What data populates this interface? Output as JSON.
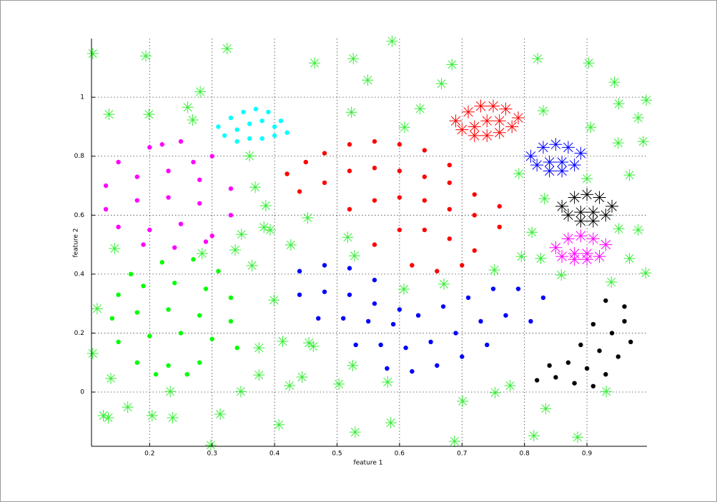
{
  "chart_data": {
    "type": "scatter",
    "xlabel": "feature 1",
    "ylabel": "feature 2",
    "xlim": [
      0.107,
      0.996
    ],
    "ylim": [
      -0.184,
      1.199
    ],
    "xticks": [
      0.2,
      0.3,
      0.4,
      0.5,
      0.6,
      0.7,
      0.8,
      0.9
    ],
    "yticks": [
      0,
      0.2,
      0.4,
      0.6,
      0.8,
      1
    ],
    "grid": true,
    "series": [
      {
        "color": "#ff00ff",
        "marker": "dot",
        "x": [
          0.15,
          0.2,
          0.25,
          0.3,
          0.13,
          0.18,
          0.23,
          0.28,
          0.33,
          0.13,
          0.18,
          0.23,
          0.28,
          0.33,
          0.15,
          0.2,
          0.25,
          0.3,
          0.19,
          0.24,
          0.29,
          0.22,
          0.27
        ],
        "y": [
          0.78,
          0.83,
          0.85,
          0.8,
          0.7,
          0.73,
          0.75,
          0.72,
          0.69,
          0.62,
          0.65,
          0.66,
          0.64,
          0.6,
          0.56,
          0.55,
          0.57,
          0.53,
          0.5,
          0.49,
          0.51,
          0.84,
          0.78
        ]
      },
      {
        "color": "#00ffff",
        "marker": "dot",
        "x": [
          0.31,
          0.33,
          0.35,
          0.37,
          0.39,
          0.41,
          0.32,
          0.34,
          0.36,
          0.38,
          0.4,
          0.42,
          0.34,
          0.36,
          0.38,
          0.4
        ],
        "y": [
          0.9,
          0.93,
          0.95,
          0.96,
          0.95,
          0.92,
          0.87,
          0.89,
          0.91,
          0.92,
          0.9,
          0.88,
          0.85,
          0.86,
          0.86,
          0.87
        ]
      },
      {
        "color": "#00ff00",
        "marker": "dot",
        "x": [
          0.17,
          0.22,
          0.27,
          0.31,
          0.15,
          0.19,
          0.24,
          0.29,
          0.33,
          0.14,
          0.18,
          0.23,
          0.28,
          0.33,
          0.15,
          0.2,
          0.25,
          0.3,
          0.34,
          0.18,
          0.23,
          0.28,
          0.21,
          0.26
        ],
        "y": [
          0.4,
          0.44,
          0.45,
          0.41,
          0.33,
          0.36,
          0.37,
          0.35,
          0.32,
          0.25,
          0.27,
          0.28,
          0.26,
          0.24,
          0.17,
          0.19,
          0.2,
          0.18,
          0.15,
          0.1,
          0.09,
          0.1,
          0.06,
          0.06
        ]
      },
      {
        "color": "#ff0000",
        "marker": "dot",
        "x": [
          0.42,
          0.45,
          0.48,
          0.52,
          0.56,
          0.6,
          0.64,
          0.68,
          0.44,
          0.48,
          0.52,
          0.56,
          0.6,
          0.64,
          0.68,
          0.72,
          0.76,
          0.52,
          0.56,
          0.6,
          0.64,
          0.68,
          0.72,
          0.76,
          0.56,
          0.6,
          0.64,
          0.68,
          0.72,
          0.62,
          0.66,
          0.7
        ],
        "y": [
          0.74,
          0.78,
          0.81,
          0.84,
          0.85,
          0.84,
          0.82,
          0.77,
          0.68,
          0.71,
          0.75,
          0.76,
          0.75,
          0.73,
          0.71,
          0.67,
          0.63,
          0.62,
          0.65,
          0.66,
          0.65,
          0.62,
          0.6,
          0.56,
          0.5,
          0.55,
          0.55,
          0.52,
          0.48,
          0.43,
          0.41,
          0.43
        ]
      },
      {
        "color": "#0000ff",
        "marker": "dot",
        "x": [
          0.44,
          0.48,
          0.52,
          0.56,
          0.44,
          0.48,
          0.52,
          0.56,
          0.6,
          0.47,
          0.51,
          0.55,
          0.59,
          0.63,
          0.67,
          0.71,
          0.75,
          0.79,
          0.83,
          0.53,
          0.57,
          0.61,
          0.65,
          0.69,
          0.73,
          0.77,
          0.81,
          0.58,
          0.62,
          0.66,
          0.7,
          0.74
        ],
        "y": [
          0.41,
          0.43,
          0.42,
          0.38,
          0.33,
          0.34,
          0.33,
          0.3,
          0.28,
          0.25,
          0.25,
          0.24,
          0.23,
          0.26,
          0.29,
          0.32,
          0.35,
          0.35,
          0.32,
          0.16,
          0.16,
          0.15,
          0.17,
          0.2,
          0.24,
          0.26,
          0.24,
          0.08,
          0.07,
          0.09,
          0.12,
          0.16
        ]
      },
      {
        "color": "#000000",
        "marker": "dot",
        "x": [
          0.82,
          0.85,
          0.88,
          0.91,
          0.84,
          0.87,
          0.9,
          0.93,
          0.89,
          0.92,
          0.95,
          0.91,
          0.94,
          0.97,
          0.93,
          0.96,
          0.96
        ],
        "y": [
          0.04,
          0.05,
          0.03,
          0.02,
          0.09,
          0.1,
          0.08,
          0.06,
          0.16,
          0.14,
          0.12,
          0.23,
          0.2,
          0.17,
          0.31,
          0.29,
          0.24
        ]
      },
      {
        "color": "#ff0000",
        "marker": "star",
        "x": [
          0.69,
          0.71,
          0.73,
          0.75,
          0.77,
          0.79,
          0.7,
          0.72,
          0.74,
          0.76,
          0.78,
          0.72,
          0.74,
          0.76
        ],
        "y": [
          0.92,
          0.95,
          0.97,
          0.97,
          0.96,
          0.93,
          0.89,
          0.9,
          0.92,
          0.92,
          0.9,
          0.87,
          0.87,
          0.88
        ]
      },
      {
        "color": "#0000ff",
        "marker": "star",
        "x": [
          0.81,
          0.83,
          0.85,
          0.87,
          0.89,
          0.82,
          0.84,
          0.86,
          0.88,
          0.84,
          0.86
        ],
        "y": [
          0.8,
          0.83,
          0.84,
          0.83,
          0.81,
          0.77,
          0.78,
          0.78,
          0.77,
          0.75,
          0.75
        ]
      },
      {
        "color": "#000000",
        "marker": "star",
        "x": [
          0.86,
          0.88,
          0.9,
          0.92,
          0.94,
          0.87,
          0.89,
          0.91,
          0.93,
          0.89,
          0.91
        ],
        "y": [
          0.63,
          0.66,
          0.67,
          0.66,
          0.63,
          0.6,
          0.61,
          0.61,
          0.6,
          0.58,
          0.58
        ]
      },
      {
        "color": "#ff00ff",
        "marker": "star",
        "x": [
          0.85,
          0.87,
          0.89,
          0.91,
          0.93,
          0.86,
          0.88,
          0.9,
          0.92,
          0.88,
          0.9
        ],
        "y": [
          0.49,
          0.52,
          0.53,
          0.52,
          0.5,
          0.46,
          0.47,
          0.47,
          0.46,
          0.45,
          0.45
        ]
      },
      {
        "color": "#33ee33",
        "marker": "star",
        "x": [
          0.109,
          0.194,
          0.324,
          0.588,
          0.464,
          0.526,
          0.549,
          0.684,
          0.821,
          0.903,
          0.944,
          0.995,
          0.951,
          0.982,
          0.281,
          0.135,
          0.199,
          0.261,
          0.269,
          0.523,
          0.633,
          0.667,
          0.608,
          0.83,
          0.906,
          0.99,
          0.95,
          0.968,
          0.791,
          0.832,
          0.9,
          0.36,
          0.369,
          0.386,
          0.383,
          0.393,
          0.347,
          0.453,
          0.426,
          0.337,
          0.284,
          0.144,
          0.364,
          0.517,
          0.528,
          0.812,
          0.826,
          0.795,
          0.951,
          0.982,
          0.968,
          0.994,
          0.859,
          0.752,
          0.607,
          0.671,
          0.939,
          0.116,
          0.109,
          0.138,
          0.233,
          0.165,
          0.204,
          0.237,
          0.126,
          0.134,
          0.313,
          0.298,
          0.346,
          0.375,
          0.375,
          0.399,
          0.413,
          0.424,
          0.444,
          0.455,
          0.462,
          0.407,
          0.503,
          0.525,
          0.529,
          0.581,
          0.586,
          0.688,
          0.701,
          0.753,
          0.777,
          0.815,
          0.834,
          0.885,
          0.931
        ],
        "y": [
          1.148,
          1.14,
          1.165,
          1.19,
          1.116,
          1.131,
          1.058,
          1.111,
          1.131,
          1.116,
          1.051,
          0.99,
          0.978,
          0.93,
          1.019,
          0.942,
          0.942,
          0.966,
          0.923,
          0.949,
          0.961,
          1.046,
          0.898,
          0.954,
          0.898,
          0.85,
          0.845,
          0.736,
          0.741,
          0.656,
          0.724,
          0.801,
          0.695,
          0.632,
          0.559,
          0.55,
          0.535,
          0.591,
          0.499,
          0.482,
          0.47,
          0.487,
          0.429,
          0.525,
          0.462,
          0.542,
          0.453,
          0.46,
          0.554,
          0.55,
          0.453,
          0.404,
          0.397,
          0.414,
          0.349,
          0.366,
          0.373,
          0.283,
          0.131,
          0.046,
          0.002,
          -0.051,
          -0.08,
          -0.087,
          -0.08,
          -0.087,
          -0.075,
          -0.18,
          0.002,
          0.15,
          0.058,
          0.312,
          0.172,
          0.022,
          0.051,
          0.167,
          0.155,
          -0.111,
          0.027,
          0.09,
          -0.136,
          0.034,
          -0.104,
          -0.167,
          -0.031,
          -0.002,
          0.022,
          -0.148,
          -0.056,
          -0.153,
          0.002
        ]
      }
    ]
  }
}
